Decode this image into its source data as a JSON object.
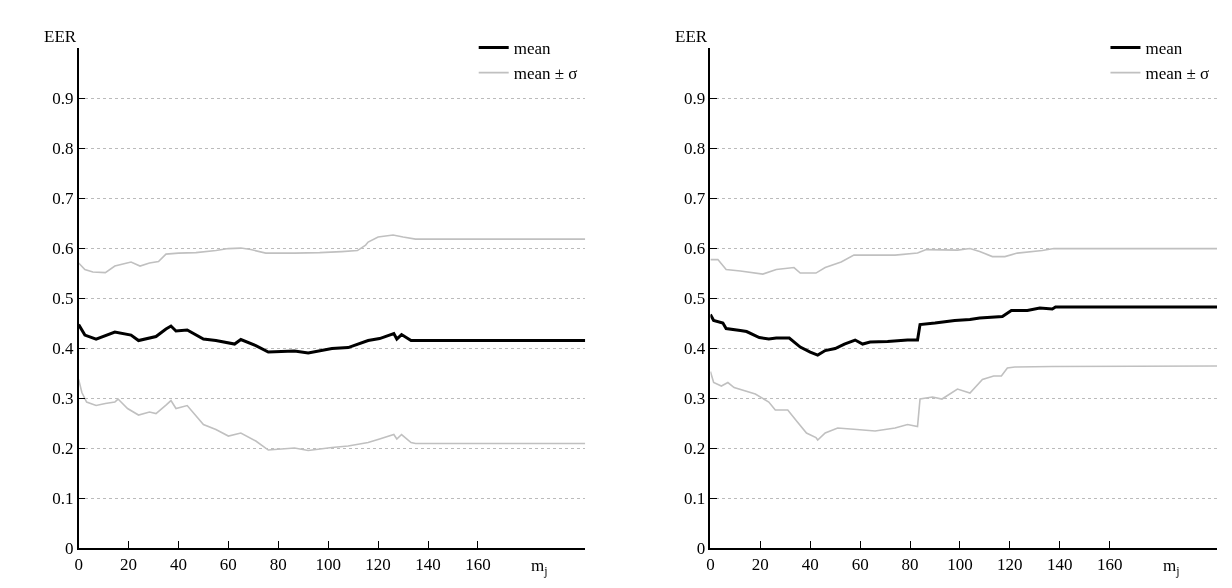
{
  "chart_data": [
    {
      "type": "line",
      "ylabel": "EER",
      "xlabel": "m$_{j}$",
      "xlim": [
        0,
        203
      ],
      "xticks": [
        0,
        20,
        40,
        60,
        80,
        100,
        120,
        140,
        160
      ],
      "ylim": [
        0,
        1
      ],
      "yticks": [
        0,
        0.1,
        0.2,
        0.3,
        0.4,
        0.5,
        0.6,
        0.7,
        0.8,
        0.9
      ],
      "grid": "y",
      "legend": "top right",
      "marker": "none",
      "line_style": "solid",
      "series": [
        {
          "name": "mean",
          "color": "#000000",
          "x": [
            0,
            2.5,
            7,
            14.5,
            21,
            24,
            31,
            35,
            37,
            39,
            43.5,
            50,
            55,
            62.5,
            65,
            71,
            76,
            86.5,
            92,
            101.5,
            108,
            116,
            120.6,
            126.3,
            127.5,
            129.4,
            133.2,
            135,
            203
          ],
          "values": [
            0.447,
            0.426,
            0.418,
            0.432,
            0.426,
            0.415,
            0.423,
            0.438,
            0.444,
            0.434,
            0.436,
            0.418,
            0.415,
            0.408,
            0.417,
            0.405,
            0.392,
            0.394,
            0.39,
            0.399,
            0.401,
            0.415,
            0.419,
            0.429,
            0.418,
            0.427,
            0.415,
            0.415,
            0.415
          ]
        },
        {
          "name": "mean ± σ",
          "color": "#c0c0c0",
          "x": [
            0,
            2.5,
            5.7,
            10.7,
            14.5,
            21,
            24.6,
            28.4,
            32,
            35,
            40,
            47,
            55,
            60,
            65,
            69,
            75,
            86.5,
            96.6,
            105.4,
            111.7,
            115,
            116,
            120,
            126,
            130,
            135,
            203
          ],
          "values": [
            0.57,
            0.557,
            0.552,
            0.551,
            0.564,
            0.572,
            0.564,
            0.57,
            0.573,
            0.588,
            0.59,
            0.591,
            0.595,
            0.599,
            0.6,
            0.597,
            0.59,
            0.59,
            0.591,
            0.593,
            0.595,
            0.606,
            0.612,
            0.622,
            0.626,
            0.622,
            0.618,
            0.618
          ]
        },
        {
          "color": "#c0c0c0",
          "x": [
            0,
            1.3,
            3.2,
            7,
            10.7,
            14.5,
            15.8,
            19.6,
            24,
            28.4,
            31,
            35,
            37,
            39,
            43.5,
            50,
            55,
            60,
            65,
            71,
            76,
            86.5,
            92,
            101.5,
            108,
            116,
            120.6,
            126.3,
            127.5,
            129.4,
            133.2,
            135,
            203
          ],
          "values": [
            0.337,
            0.311,
            0.292,
            0.285,
            0.289,
            0.292,
            0.298,
            0.279,
            0.266,
            0.272,
            0.269,
            0.286,
            0.295,
            0.279,
            0.285,
            0.247,
            0.237,
            0.224,
            0.23,
            0.214,
            0.196,
            0.2,
            0.195,
            0.201,
            0.204,
            0.211,
            0.218,
            0.227,
            0.218,
            0.227,
            0.211,
            0.209,
            0.209
          ]
        }
      ]
    },
    {
      "type": "line",
      "ylabel": "EER",
      "xlabel": "m$_{j}$",
      "xlim": [
        0,
        203
      ],
      "xticks": [
        0,
        20,
        40,
        60,
        80,
        100,
        120,
        140,
        160
      ],
      "ylim": [
        0,
        1
      ],
      "yticks": [
        0,
        0.1,
        0.2,
        0.3,
        0.4,
        0.5,
        0.6,
        0.7,
        0.8,
        0.9
      ],
      "grid": "y",
      "legend": "top right",
      "marker": "none",
      "line_style": "solid",
      "series": [
        {
          "name": "mean",
          "color": "#000000",
          "x": [
            0,
            1.3,
            5,
            6.3,
            12,
            14.5,
            19.6,
            23.4,
            26.4,
            31.6,
            36,
            40,
            43,
            46,
            50,
            53.7,
            58,
            61,
            64,
            71,
            79,
            83,
            84,
            90,
            97.9,
            104,
            107.9,
            117,
            120.6,
            127,
            132,
            137,
            138.3,
            203
          ],
          "values": [
            0.467,
            0.455,
            0.45,
            0.439,
            0.435,
            0.433,
            0.421,
            0.418,
            0.42,
            0.42,
            0.402,
            0.392,
            0.386,
            0.395,
            0.399,
            0.408,
            0.416,
            0.408,
            0.412,
            0.413,
            0.416,
            0.416,
            0.447,
            0.45,
            0.455,
            0.457,
            0.46,
            0.463,
            0.475,
            0.475,
            0.48,
            0.478,
            0.482,
            0.482
          ]
        },
        {
          "name": "mean ± σ",
          "color": "#c0c0c0",
          "x": [
            0,
            3,
            6.3,
            12,
            21,
            26.4,
            33.5,
            36,
            42.3,
            46,
            52.4,
            57.5,
            64,
            74,
            83,
            86.5,
            99,
            104,
            107.9,
            113,
            118,
            123,
            133,
            137.6,
            203
          ],
          "values": [
            0.577,
            0.577,
            0.557,
            0.554,
            0.548,
            0.557,
            0.561,
            0.55,
            0.55,
            0.561,
            0.572,
            0.586,
            0.586,
            0.586,
            0.59,
            0.597,
            0.596,
            0.599,
            0.593,
            0.583,
            0.583,
            0.59,
            0.595,
            0.599,
            0.599
          ]
        },
        {
          "color": "#c0c0c0",
          "x": [
            0,
            1.3,
            4.4,
            7,
            9.5,
            18,
            23.4,
            26,
            31,
            34.7,
            38.5,
            42.3,
            43,
            46,
            51,
            58.7,
            66,
            74,
            79,
            83,
            84,
            89,
            92.8,
            99,
            104,
            109,
            113.5,
            116.6,
            119,
            122,
            137,
            203
          ],
          "values": [
            0.353,
            0.331,
            0.324,
            0.331,
            0.321,
            0.308,
            0.292,
            0.276,
            0.276,
            0.253,
            0.23,
            0.221,
            0.216,
            0.23,
            0.24,
            0.237,
            0.234,
            0.24,
            0.247,
            0.243,
            0.298,
            0.302,
            0.298,
            0.318,
            0.31,
            0.337,
            0.344,
            0.344,
            0.36,
            0.362,
            0.363,
            0.364
          ]
        }
      ]
    }
  ]
}
